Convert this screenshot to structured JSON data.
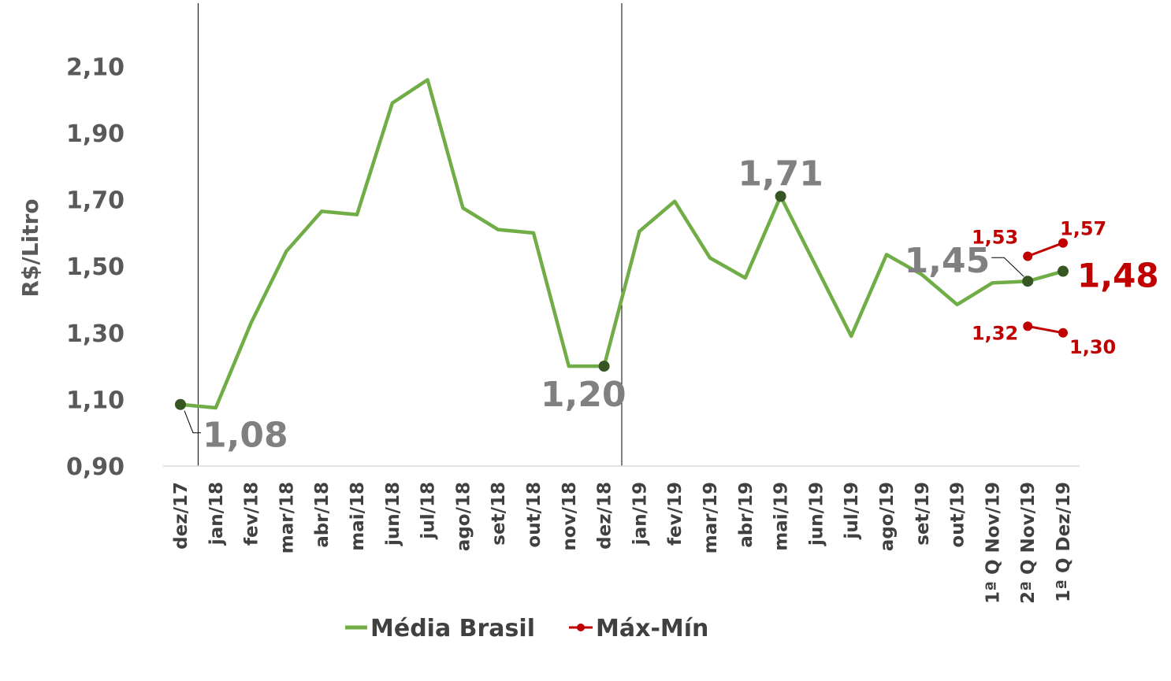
{
  "chart_data": {
    "type": "line",
    "ylabel": "R$/Litro",
    "ylim": [
      0.9,
      2.24
    ],
    "yticks": [
      "0,90",
      "1,10",
      "1,30",
      "1,50",
      "1,70",
      "1,90",
      "2,10"
    ],
    "ytick_values": [
      0.9,
      1.1,
      1.3,
      1.5,
      1.7,
      1.9,
      2.1
    ],
    "categories": [
      "dez/17",
      "jan/18",
      "fev/18",
      "mar/18",
      "abr/18",
      "mai/18",
      "jun/18",
      "jul/18",
      "ago/18",
      "set/18",
      "out/18",
      "nov/18",
      "dez/18",
      "jan/19",
      "fev/19",
      "mar/19",
      "abr/19",
      "mai/19",
      "jun/19",
      "jul/19",
      "ago/19",
      "set/19",
      "out/19",
      "1ª Q Nov/19",
      "2ª Q Nov/19",
      "1ª Q Dez/19"
    ],
    "series": [
      {
        "name": "Média Brasil",
        "color": "#70ad47",
        "values": [
          1.085,
          1.075,
          1.33,
          1.545,
          1.665,
          1.655,
          1.99,
          2.06,
          1.675,
          1.61,
          1.6,
          1.2,
          1.2,
          1.605,
          1.695,
          1.525,
          1.465,
          1.71,
          1.5,
          1.29,
          1.535,
          1.475,
          1.385,
          1.45,
          1.455,
          1.485
        ],
        "highlight_points": [
          {
            "index": 0,
            "label": "1,08"
          },
          {
            "index": 12,
            "label": "1,20"
          },
          {
            "index": 17,
            "label": "1,71"
          },
          {
            "index": 24,
            "label": "1,45"
          },
          {
            "index": 25,
            "label": "1,48"
          }
        ]
      },
      {
        "name": "Máx-Mín",
        "color": "#c00000",
        "max": {
          "indices": [
            24,
            25
          ],
          "values": [
            1.53,
            1.57
          ],
          "labels": [
            "1,53",
            "1,57"
          ]
        },
        "min": {
          "indices": [
            24,
            25
          ],
          "values": [
            1.32,
            1.3
          ],
          "labels": [
            "1,32",
            "1,30"
          ]
        }
      }
    ],
    "vertical_separators_after_index": [
      0,
      12
    ],
    "grid": false,
    "legend_position": "bottom"
  }
}
